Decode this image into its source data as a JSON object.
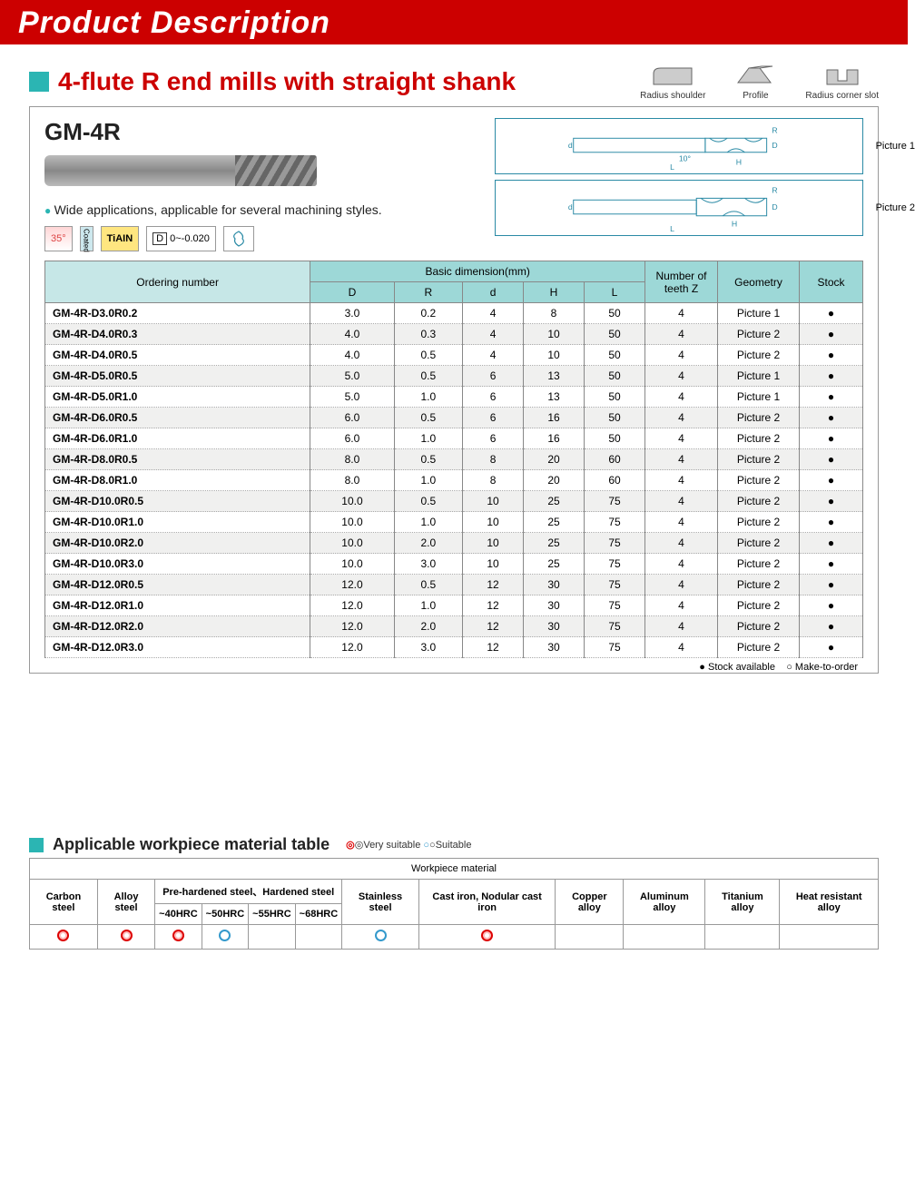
{
  "header": {
    "title": "Product Description"
  },
  "section": {
    "title": "4-flute R end mills with straight shank",
    "icons": [
      {
        "label": "Radius shoulder"
      },
      {
        "label": "Profile"
      },
      {
        "label": "Radius corner slot"
      }
    ]
  },
  "product": {
    "code": "GM-4R",
    "description": "Wide applications, applicable for several machining styles.",
    "badges": {
      "angle": "35°",
      "coating_side": "Coated",
      "coating": "TiAIN",
      "tolerance_label": "D",
      "tolerance_value": "0~-0.020"
    },
    "diagrams": [
      {
        "label": "Picture 1",
        "angle": "10°",
        "dims": [
          "d",
          "D",
          "R",
          "H",
          "L"
        ]
      },
      {
        "label": "Picture 2",
        "dims": [
          "d",
          "D",
          "R",
          "H",
          "L"
        ]
      }
    ]
  },
  "spec_table": {
    "headers": {
      "ordering": "Ordering number",
      "basic_dim": "Basic dimension(mm)",
      "cols": [
        "D",
        "R",
        "d",
        "H",
        "L"
      ],
      "teeth": "Number of teeth Z",
      "geometry": "Geometry",
      "stock": "Stock"
    },
    "rows": [
      [
        "GM-4R-D3.0R0.2",
        "3.0",
        "0.2",
        "4",
        "8",
        "50",
        "4",
        "Picture 1",
        "●"
      ],
      [
        "GM-4R-D4.0R0.3",
        "4.0",
        "0.3",
        "4",
        "10",
        "50",
        "4",
        "Picture 2",
        "●"
      ],
      [
        "GM-4R-D4.0R0.5",
        "4.0",
        "0.5",
        "4",
        "10",
        "50",
        "4",
        "Picture 2",
        "●"
      ],
      [
        "GM-4R-D5.0R0.5",
        "5.0",
        "0.5",
        "6",
        "13",
        "50",
        "4",
        "Picture 1",
        "●"
      ],
      [
        "GM-4R-D5.0R1.0",
        "5.0",
        "1.0",
        "6",
        "13",
        "50",
        "4",
        "Picture 1",
        "●"
      ],
      [
        "GM-4R-D6.0R0.5",
        "6.0",
        "0.5",
        "6",
        "16",
        "50",
        "4",
        "Picture 2",
        "●"
      ],
      [
        "GM-4R-D6.0R1.0",
        "6.0",
        "1.0",
        "6",
        "16",
        "50",
        "4",
        "Picture 2",
        "●"
      ],
      [
        "GM-4R-D8.0R0.5",
        "8.0",
        "0.5",
        "8",
        "20",
        "60",
        "4",
        "Picture 2",
        "●"
      ],
      [
        "GM-4R-D8.0R1.0",
        "8.0",
        "1.0",
        "8",
        "20",
        "60",
        "4",
        "Picture 2",
        "●"
      ],
      [
        "GM-4R-D10.0R0.5",
        "10.0",
        "0.5",
        "10",
        "25",
        "75",
        "4",
        "Picture 2",
        "●"
      ],
      [
        "GM-4R-D10.0R1.0",
        "10.0",
        "1.0",
        "10",
        "25",
        "75",
        "4",
        "Picture 2",
        "●"
      ],
      [
        "GM-4R-D10.0R2.0",
        "10.0",
        "2.0",
        "10",
        "25",
        "75",
        "4",
        "Picture 2",
        "●"
      ],
      [
        "GM-4R-D10.0R3.0",
        "10.0",
        "3.0",
        "10",
        "25",
        "75",
        "4",
        "Picture 2",
        "●"
      ],
      [
        "GM-4R-D12.0R0.5",
        "12.0",
        "0.5",
        "12",
        "30",
        "75",
        "4",
        "Picture 2",
        "●"
      ],
      [
        "GM-4R-D12.0R1.0",
        "12.0",
        "1.0",
        "12",
        "30",
        "75",
        "4",
        "Picture 2",
        "●"
      ],
      [
        "GM-4R-D12.0R2.0",
        "12.0",
        "2.0",
        "12",
        "30",
        "75",
        "4",
        "Picture 2",
        "●"
      ],
      [
        "GM-4R-D12.0R3.0",
        "12.0",
        "3.0",
        "12",
        "30",
        "75",
        "4",
        "Picture 2",
        "●"
      ]
    ],
    "legend": {
      "available": "● Stock available",
      "mto": "○ Make-to-order"
    }
  },
  "material_table": {
    "title": "Applicable workpiece material table",
    "legend_very": "◎Very suitable",
    "legend_suit": "○Suitable",
    "group_header": "Workpiece material",
    "columns_top": [
      "Carbon steel",
      "Alloy steel",
      "Pre-hardened steel、Hardened steel",
      "Stainless steel",
      "Cast iron, Nodular cast iron",
      "Copper alloy",
      "Aluminum alloy",
      "Titanium alloy",
      "Heat resistant alloy"
    ],
    "sub_cols": [
      "~40HRC",
      "~50HRC",
      "~55HRC",
      "~68HRC"
    ],
    "values": [
      "red",
      "red",
      "red",
      "blue",
      "",
      "",
      "blue",
      "red",
      "",
      "",
      "",
      ""
    ]
  },
  "colors": {
    "brand_red": "#cc0000",
    "teal": "#2bb5b3",
    "header_teal": "#9dd8d7",
    "border": "#888888"
  }
}
